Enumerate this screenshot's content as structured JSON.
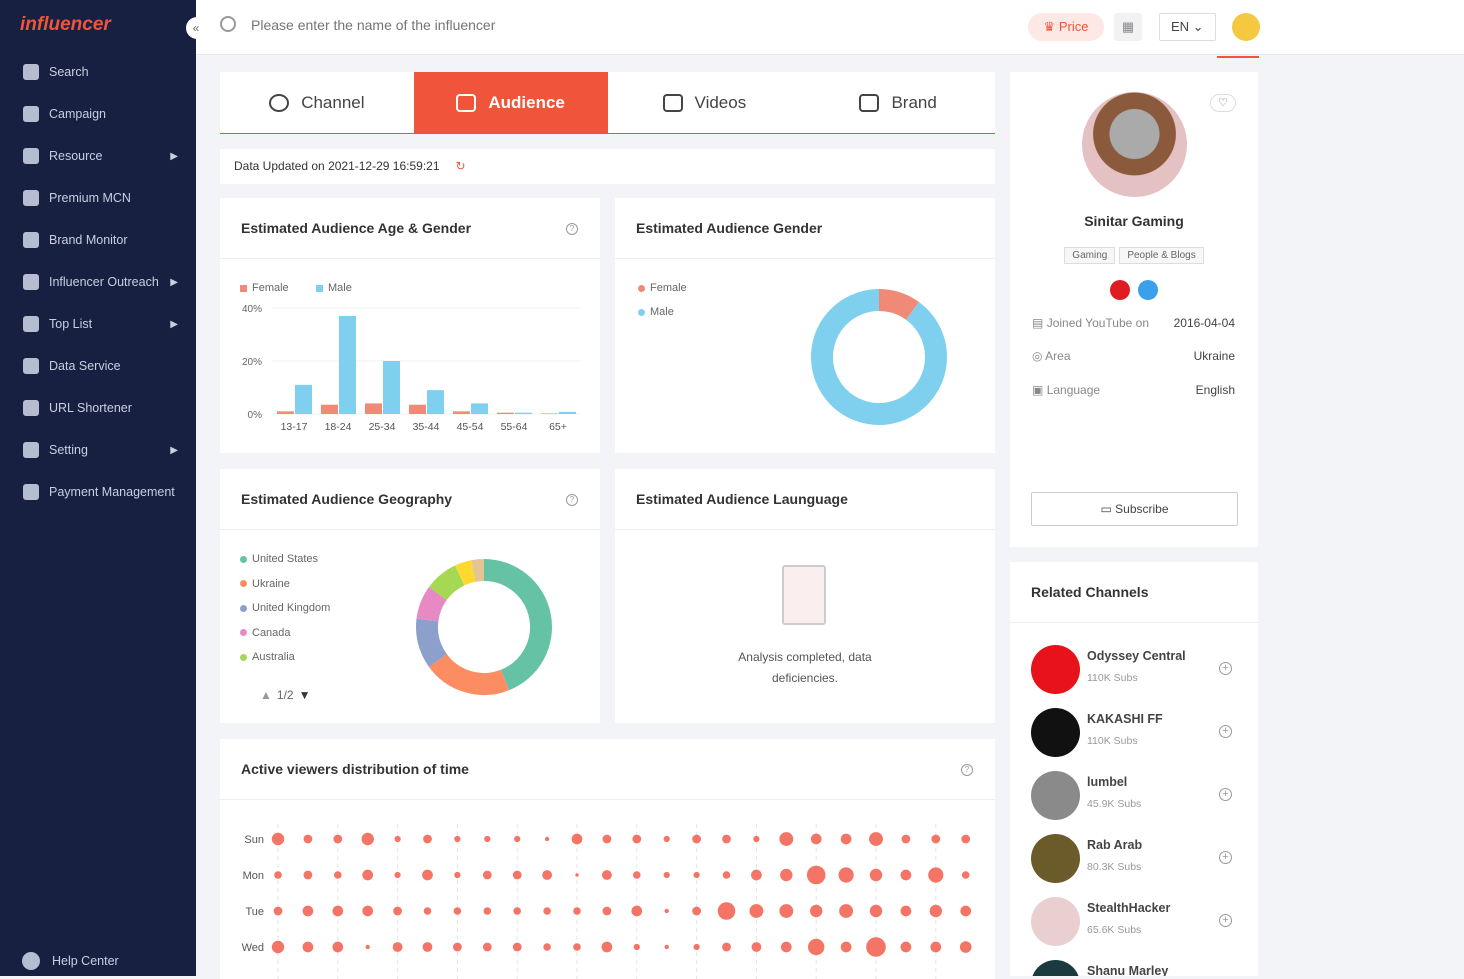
{
  "sidebar": {
    "logo": "influencer",
    "items": [
      {
        "label": "Search",
        "icon": "search-icon",
        "arrow": false
      },
      {
        "label": "Campaign",
        "icon": "campaign-icon",
        "arrow": false
      },
      {
        "label": "Resource",
        "icon": "heart-icon",
        "arrow": true
      },
      {
        "label": "Premium MCN",
        "icon": "building-icon",
        "arrow": false
      },
      {
        "label": "Brand Monitor",
        "icon": "shield-icon",
        "arrow": false
      },
      {
        "label": "Influencer Outreach",
        "icon": "mail-icon",
        "arrow": true
      },
      {
        "label": "Top List",
        "icon": "bar-chart-icon",
        "arrow": true
      },
      {
        "label": "Data Service",
        "icon": "chart-icon",
        "arrow": false
      },
      {
        "label": "URL Shortener",
        "icon": "link-icon",
        "arrow": false
      },
      {
        "label": "Setting",
        "icon": "gear-icon",
        "arrow": true
      },
      {
        "label": "Payment Management",
        "icon": "wallet-icon",
        "arrow": false
      }
    ],
    "help": "Help Center"
  },
  "header": {
    "search_placeholder": "Please enter the name of the influencer",
    "price": "Price",
    "lang": "EN"
  },
  "tabs": [
    {
      "label": "Channel"
    },
    {
      "label": "Audience",
      "active": true
    },
    {
      "label": "Videos"
    },
    {
      "label": "Brand"
    }
  ],
  "updated": "Data Updated on 2021-12-29 16:59:21",
  "cards": {
    "age_gender": "Estimated Audience Age & Gender",
    "gender": "Estimated Audience Gender",
    "geo": "Estimated Audience Geography",
    "language": "Estimated Audience Launguage",
    "active": "Active viewers distribution of time",
    "language_empty": "Analysis completed, data deficiencies.",
    "geo_page": "1/2"
  },
  "chart_data": [
    {
      "type": "bar",
      "title": "Estimated Audience Age & Gender",
      "categories": [
        "13-17",
        "18-24",
        "25-34",
        "35-44",
        "45-54",
        "55-64",
        "65+"
      ],
      "yticks": [
        "0%",
        "20%",
        "40%"
      ],
      "ylim": [
        0,
        40
      ],
      "series": [
        {
          "name": "Female",
          "color": "#f08a76",
          "values": [
            1,
            3.5,
            4,
            3.5,
            1,
            0.5,
            0.2
          ]
        },
        {
          "name": "Male",
          "color": "#7fd0ee",
          "values": [
            11,
            37,
            20,
            9,
            4,
            0.5,
            0.8
          ]
        }
      ],
      "legend": "top-left"
    },
    {
      "type": "pie",
      "title": "Estimated Audience Gender",
      "donut": true,
      "slices": [
        {
          "name": "Female",
          "value": 10,
          "color": "#f08a76"
        },
        {
          "name": "Male",
          "value": 90,
          "color": "#7fd0ee"
        }
      ]
    },
    {
      "type": "pie",
      "title": "Estimated Audience Geography",
      "donut": true,
      "slices": [
        {
          "name": "United States",
          "value": 44,
          "color": "#66c2a5"
        },
        {
          "name": "Ukraine",
          "value": 21,
          "color": "#fc8d62"
        },
        {
          "name": "United Kingdom",
          "value": 12,
          "color": "#8da0cb"
        },
        {
          "name": "Canada",
          "value": 8,
          "color": "#e78ac3"
        },
        {
          "name": "Australia",
          "value": 8,
          "color": "#a6d854"
        },
        {
          "name": "",
          "value": 4,
          "color": "#ffd92f"
        },
        {
          "name": "",
          "value": 3,
          "color": "#e5c494"
        }
      ]
    },
    {
      "type": "scatter",
      "title": "Active viewers distribution of time",
      "days": [
        "Sun",
        "Mon",
        "Tue",
        "Wed"
      ],
      "hours": 24,
      "color": "#f47466",
      "values": [
        [
          4,
          2,
          2,
          4,
          1,
          2,
          1,
          1,
          1,
          0.5,
          3,
          2,
          2,
          1,
          2,
          2,
          1,
          5,
          3,
          3,
          5,
          2,
          2,
          2
        ],
        [
          1.5,
          2,
          1.5,
          3,
          1,
          3,
          1,
          2,
          2,
          2.5,
          0.3,
          2.5,
          1.5,
          1,
          1,
          1.5,
          3,
          4,
          9,
          6,
          4,
          3,
          6,
          1.5
        ],
        [
          2,
          3,
          3,
          3,
          2,
          1.5,
          1.5,
          1.5,
          1.5,
          1.5,
          1.5,
          2,
          3,
          0.5,
          2,
          8,
          5,
          5,
          4,
          5,
          4,
          3,
          4,
          3
        ],
        [
          4,
          3,
          3,
          0.5,
          2.5,
          2.5,
          2,
          2,
          2,
          1.5,
          1.5,
          3,
          1,
          0.5,
          1,
          2,
          2.5,
          3,
          7,
          3,
          10,
          3,
          3,
          3.5
        ]
      ]
    }
  ],
  "profile": {
    "name": "Sinitar Gaming",
    "tags": [
      "Gaming",
      "People & Blogs"
    ],
    "joined_label": "Joined YouTube on",
    "joined": "2016-04-04",
    "area_label": "Area",
    "area": "Ukraine",
    "language_label": "Language",
    "language": "English",
    "subscribe": "Subscribe"
  },
  "related": {
    "title": "Related Channels",
    "items": [
      {
        "name": "Odyssey Central",
        "subs": "110K Subs",
        "color": "#e8121b"
      },
      {
        "name": "KAKASHI FF",
        "subs": "110K Subs",
        "color": "#111111"
      },
      {
        "name": "lumbel",
        "subs": "45.9K Subs",
        "color": "#8a8a8a"
      },
      {
        "name": "Rab Arab",
        "subs": "80.3K Subs",
        "color": "#6b5a2a"
      },
      {
        "name": "StealthHacker",
        "subs": "65.6K Subs",
        "color": "#e9cfd0"
      },
      {
        "name": "Shanu Marley",
        "subs": "",
        "color": "#1a3a40"
      }
    ]
  }
}
